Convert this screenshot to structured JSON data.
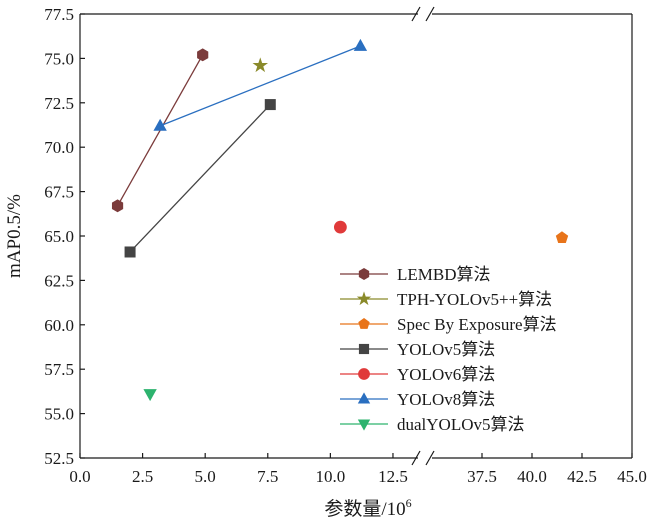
{
  "chart_data": {
    "type": "scatter",
    "xlabel": "参数量/10",
    "xlabel_sup": "6",
    "ylabel": "mAP0.5/%",
    "xlim_segments": [
      [
        0,
        13.5
      ],
      [
        35,
        45
      ]
    ],
    "ylim": [
      52.5,
      77.5
    ],
    "x_ticks": [
      "0.0",
      "2.5",
      "5.0",
      "7.5",
      "10.0",
      "12.5",
      "37.5",
      "40.0",
      "42.5",
      "45.0"
    ],
    "x_tick_values": [
      0,
      2.5,
      5,
      7.5,
      10,
      12.5,
      37.5,
      40,
      42.5,
      45
    ],
    "y_ticks": [
      "52.5",
      "55.0",
      "57.5",
      "60.0",
      "62.5",
      "65.0",
      "67.5",
      "70.0",
      "72.5",
      "75.0",
      "77.5"
    ],
    "y_tick_values": [
      52.5,
      55,
      57.5,
      60,
      62.5,
      65,
      67.5,
      70,
      72.5,
      75,
      77.5
    ],
    "grid": false,
    "legend_position": "bottom-right",
    "series": [
      {
        "name": "LEMBD算法",
        "color": "#7b3b3b",
        "marker": "hexagon",
        "line": true,
        "points": [
          [
            1.5,
            66.7
          ],
          [
            4.9,
            75.2
          ]
        ]
      },
      {
        "name": "TPH-YOLOv5++算法",
        "color": "#8a8a2a",
        "marker": "star",
        "line": false,
        "points": [
          [
            7.2,
            74.6
          ]
        ]
      },
      {
        "name": "Spec By Exposure算法",
        "color": "#e8741a",
        "marker": "pentagon",
        "line": false,
        "points": [
          [
            41.5,
            64.9
          ]
        ]
      },
      {
        "name": "YOLOv5算法",
        "color": "#444444",
        "marker": "square",
        "line": true,
        "points": [
          [
            2.0,
            64.1
          ],
          [
            7.6,
            72.4
          ]
        ]
      },
      {
        "name": "YOLOv6算法",
        "color": "#e03a3a",
        "marker": "circle",
        "line": false,
        "points": [
          [
            10.4,
            65.5
          ]
        ]
      },
      {
        "name": "YOLOv8算法",
        "color": "#2a6fc0",
        "marker": "triangle-up",
        "line": true,
        "points": [
          [
            3.2,
            71.2
          ],
          [
            11.2,
            75.7
          ]
        ]
      },
      {
        "name": "dualYOLOv5算法",
        "color": "#2db36e",
        "marker": "triangle-down",
        "line": false,
        "points": [
          [
            2.8,
            56.1
          ]
        ]
      }
    ]
  }
}
